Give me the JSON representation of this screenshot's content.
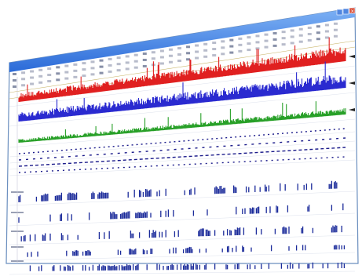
{
  "window": {
    "title_bar_color": "#2a6ad8",
    "title_bar_highlight": "#7eb2f5",
    "close_button_color": "#d8503a",
    "body_color": "#ffffff",
    "border_color": "#6b8fbf"
  },
  "toolbar": {
    "button_groups": 3,
    "icons": [
      "open-icon",
      "save-icon",
      "zoom-icon",
      "settings-icon"
    ]
  },
  "tracks": [
    {
      "name": "signal-track-red",
      "kind": "dense-waveform",
      "color": "#e02020",
      "baseline_level": 0.35,
      "noise_level": 0.45
    },
    {
      "name": "signal-track-blue",
      "kind": "dense-waveform",
      "color": "#2a2ad0",
      "baseline_level": 0.3,
      "noise_level": 0.55
    },
    {
      "name": "signal-track-green",
      "kind": "dense-waveform",
      "color": "#28a028",
      "baseline_level": 0.15,
      "noise_level": 0.3
    },
    {
      "name": "dotted-track-1",
      "kind": "dotted-line",
      "color": "#1a1a8a"
    },
    {
      "name": "dotted-track-2",
      "kind": "dotted-line",
      "color": "#1a1a8a"
    },
    {
      "name": "dotted-track-3",
      "kind": "dotted-line",
      "color": "#1a1a8a"
    },
    {
      "name": "dotted-track-4",
      "kind": "dotted-line",
      "color": "#1a1a8a"
    },
    {
      "name": "event-raster-1",
      "kind": "event-raster",
      "color": "#1a2a9a",
      "density": 0.3
    },
    {
      "name": "event-raster-2",
      "kind": "event-raster",
      "color": "#1a2a9a",
      "density": 0.25
    },
    {
      "name": "event-raster-3",
      "kind": "event-raster",
      "color": "#1a2a9a",
      "density": 0.35
    },
    {
      "name": "event-raster-4",
      "kind": "event-raster",
      "color": "#1a2a9a",
      "density": 0.3
    },
    {
      "name": "event-raster-5",
      "kind": "event-raster",
      "color": "#1a2a9a",
      "density": 0.45
    }
  ]
}
